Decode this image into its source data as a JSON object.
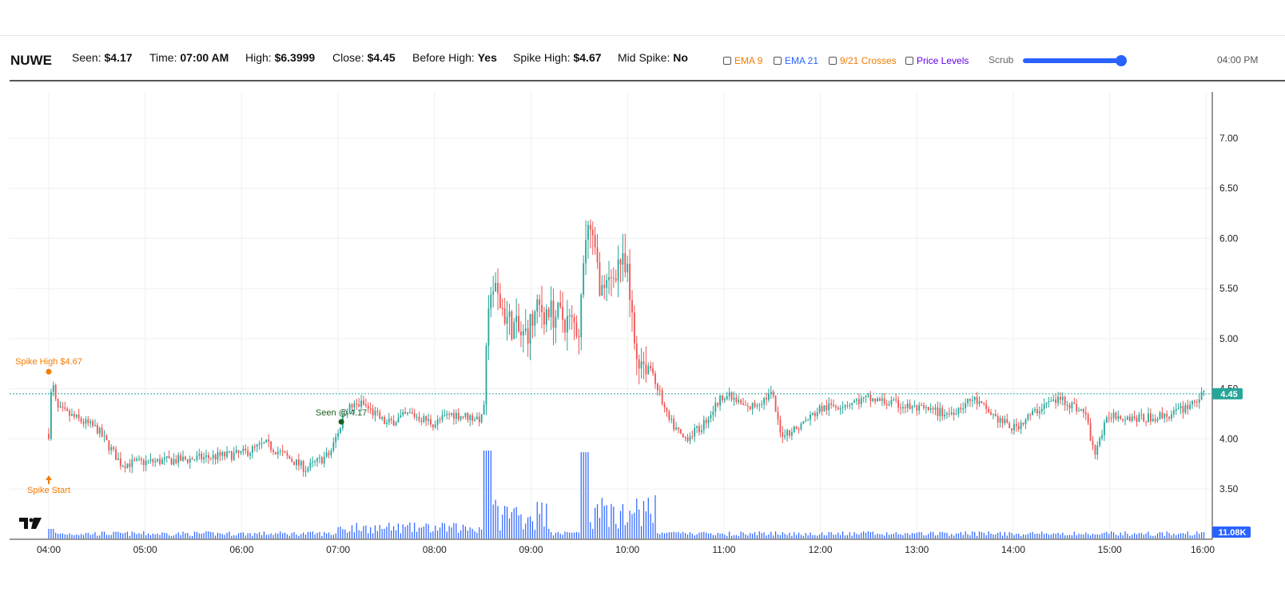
{
  "header": {
    "ticker": "NUWE",
    "seen_label": "Seen:",
    "seen_value": "$4.17",
    "time_label": "Time:",
    "time_value": "07:00 AM",
    "high_label": "High:",
    "high_value": "$6.3999",
    "close_label": "Close:",
    "close_value": "$4.45",
    "before_high_label": "Before High:",
    "before_high_value": "Yes",
    "spike_high_label": "Spike High:",
    "spike_high_value": "$4.67",
    "mid_spike_label": "Mid Spike:",
    "mid_spike_value": "No",
    "toggles": [
      {
        "label": "EMA 9",
        "color": "#f57c00",
        "checked": false
      },
      {
        "label": "EMA 21",
        "color": "#2962ff",
        "checked": false
      },
      {
        "label": "9/21 Crosses",
        "color": "#f57c00",
        "checked": false
      },
      {
        "label": "Price Levels",
        "color": "#6200ea",
        "checked": false
      }
    ],
    "scrub_label": "Scrub",
    "scrub_position": 1.0,
    "scrub_time": "04:00 PM"
  },
  "chart_data": {
    "type": "candlestick",
    "x_ticks": [
      "04:00",
      "05:00",
      "06:00",
      "07:00",
      "08:00",
      "09:00",
      "10:00",
      "11:00",
      "12:00",
      "13:00",
      "14:00",
      "15:00",
      "16:00"
    ],
    "y_ticks": [
      "7.00",
      "6.50",
      "6.00",
      "5.50",
      "5.00",
      "4.50",
      "4.00",
      "3.50"
    ],
    "ylim": [
      3.2,
      7.45
    ],
    "price_keypoints": [
      [
        "04:00",
        4.05
      ],
      [
        "04:02",
        4.6
      ],
      [
        "04:05",
        4.3
      ],
      [
        "04:30",
        4.1
      ],
      [
        "04:45",
        3.75
      ],
      [
        "05:30",
        3.8
      ],
      [
        "06:00",
        3.85
      ],
      [
        "06:15",
        3.95
      ],
      [
        "06:40",
        3.7
      ],
      [
        "06:55",
        3.85
      ],
      [
        "07:05",
        4.3
      ],
      [
        "07:15",
        4.35
      ],
      [
        "07:30",
        4.15
      ],
      [
        "07:45",
        4.25
      ],
      [
        "08:00",
        4.15
      ],
      [
        "08:10",
        4.25
      ],
      [
        "08:30",
        4.2
      ],
      [
        "08:35",
        5.55
      ],
      [
        "08:45",
        5.2
      ],
      [
        "08:55",
        5.0
      ],
      [
        "09:05",
        5.3
      ],
      [
        "09:20",
        5.2
      ],
      [
        "09:30",
        5.1
      ],
      [
        "09:35",
        6.2
      ],
      [
        "09:45",
        5.4
      ],
      [
        "09:55",
        5.8
      ],
      [
        "10:00",
        5.6
      ],
      [
        "10:05",
        4.85
      ],
      [
        "10:15",
        4.7
      ],
      [
        "10:25",
        4.2
      ],
      [
        "10:35",
        4.0
      ],
      [
        "10:45",
        4.1
      ],
      [
        "11:00",
        4.45
      ],
      [
        "11:15",
        4.3
      ],
      [
        "11:30",
        4.45
      ],
      [
        "11:35",
        4.05
      ],
      [
        "11:45",
        4.1
      ],
      [
        "12:00",
        4.3
      ],
      [
        "12:30",
        4.4
      ],
      [
        "13:00",
        4.3
      ],
      [
        "13:20",
        4.25
      ],
      [
        "13:35",
        4.4
      ],
      [
        "13:50",
        4.2
      ],
      [
        "14:00",
        4.1
      ],
      [
        "14:20",
        4.35
      ],
      [
        "14:30",
        4.4
      ],
      [
        "14:45",
        4.25
      ],
      [
        "14:50",
        3.85
      ],
      [
        "15:00",
        4.25
      ],
      [
        "15:20",
        4.2
      ],
      [
        "15:40",
        4.25
      ],
      [
        "16:00",
        4.45
      ]
    ],
    "annotations": {
      "spike_high_label": "Spike High $4.67",
      "spike_high_price": 4.67,
      "spike_high_time": "04:00",
      "spike_start_label": "Spike Start",
      "spike_start_time": "04:00",
      "seen_label": "Seen @ 4.17",
      "seen_price": 4.17,
      "seen_time": "07:00"
    },
    "last_price": 4.45,
    "last_price_label": "4.45",
    "last_volume_label": "11.08K",
    "up_color": "#26a69a",
    "down_color": "#ef5350",
    "volume_color": "#2962ff",
    "marker_color": "#f57c00",
    "seen_color": "#1b5e20",
    "grid": true
  }
}
